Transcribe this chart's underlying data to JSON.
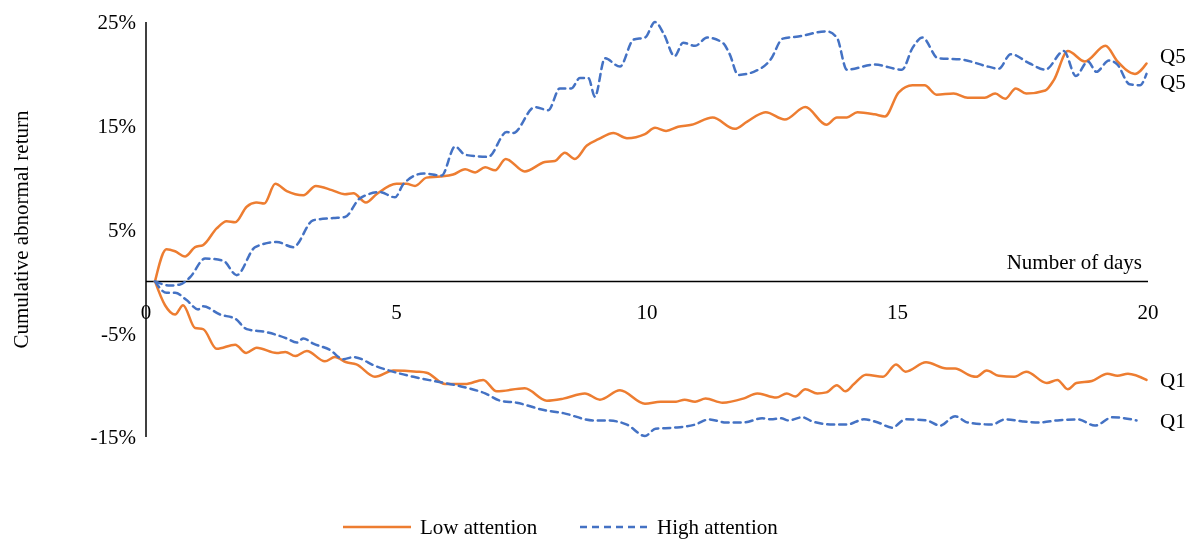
{
  "chart_data": {
    "type": "line",
    "xlabel": "Number of days",
    "ylabel": "Cumulative abnormal return",
    "xlim": [
      0,
      20
    ],
    "xticks": [
      0,
      5,
      10,
      15,
      20
    ],
    "ylim": [
      -15,
      25
    ],
    "yticks": [
      {
        "value": 25,
        "label": "25%"
      },
      {
        "value": 15,
        "label": "15%"
      },
      {
        "value": 5,
        "label": "5%"
      },
      {
        "value": -5,
        "label": "-5%"
      },
      {
        "value": -15,
        "label": "-15%"
      }
    ],
    "grid": false,
    "legend": "bottom",
    "marker": "none",
    "series": [
      {
        "name": "Low attention",
        "color": "#ed7d31",
        "line_style": "solid",
        "x": [
          0.18,
          0.41,
          0.58,
          0.78,
          0.98,
          1.14,
          1.41,
          1.61,
          1.78,
          2.01,
          2.21,
          2.36,
          2.58,
          2.81,
          3.14,
          3.39,
          3.71,
          3.97,
          4.14,
          4.39,
          4.6,
          5.0,
          5.2,
          5.37,
          5.6,
          5.87,
          6.13,
          6.37,
          6.57,
          6.77,
          6.97,
          7.18,
          7.56,
          7.96,
          8.16,
          8.36,
          8.56,
          8.8,
          9.03,
          9.33,
          9.6,
          9.96,
          10.16,
          10.38,
          10.62,
          10.89,
          11.31,
          11.75,
          12.0,
          12.37,
          12.75,
          13.16,
          13.58,
          13.79,
          13.99,
          14.2,
          14.54,
          14.75,
          15.02,
          15.3,
          15.54,
          15.78,
          16.12,
          16.4,
          16.74,
          16.95,
          17.15,
          17.36,
          17.57,
          17.95,
          18.12,
          18.4,
          18.74,
          19.15,
          19.39,
          19.74,
          19.97
        ],
        "values": [
          0,
          3.1,
          2.9,
          2.4,
          3.3,
          3.5,
          5.1,
          5.8,
          5.7,
          7.2,
          7.6,
          7.5,
          9.4,
          8.7,
          8.3,
          9.2,
          8.8,
          8.4,
          8.5,
          7.6,
          8.4,
          9.4,
          9.4,
          9.2,
          10.0,
          10.1,
          10.3,
          10.8,
          10.5,
          11.0,
          10.7,
          11.8,
          10.6,
          11.5,
          11.6,
          12.4,
          11.8,
          13.1,
          13.7,
          14.3,
          13.8,
          14.2,
          14.8,
          14.5,
          14.9,
          15.1,
          15.8,
          14.7,
          15.4,
          16.3,
          15.6,
          16.8,
          15.1,
          15.8,
          15.8,
          16.3,
          16.1,
          15.9,
          18.2,
          18.9,
          18.9,
          18.0,
          18.1,
          17.7,
          17.7,
          18.1,
          17.6,
          18.6,
          18.1,
          18.4,
          19.4,
          22.2,
          21.2,
          22.7,
          21.2,
          20.0,
          21.0
        ]
      },
      {
        "name": "High attention",
        "color": "#4472c4",
        "line_style": "dashed",
        "x": [
          0.18,
          0.48,
          0.68,
          0.88,
          1.18,
          1.54,
          1.81,
          2.18,
          2.61,
          2.94,
          3.34,
          3.74,
          3.97,
          4.27,
          4.67,
          4.97,
          5.14,
          5.54,
          5.9,
          6.17,
          6.37,
          6.83,
          7.2,
          7.33,
          7.76,
          8.03,
          8.26,
          8.49,
          8.66,
          8.83,
          8.96,
          9.16,
          9.46,
          9.73,
          9.96,
          10.16,
          10.34,
          10.55,
          10.72,
          10.96,
          11.2,
          11.51,
          11.65,
          11.82,
          12.13,
          12.47,
          12.71,
          13.02,
          13.58,
          13.79,
          13.99,
          14.54,
          15.09,
          15.3,
          15.5,
          15.81,
          16.26,
          16.81,
          17.02,
          17.26,
          17.64,
          17.95,
          18.32,
          18.56,
          18.8,
          18.97,
          19.22,
          19.39,
          19.63,
          19.84,
          19.97
        ],
        "values": [
          0,
          -0.4,
          -0.3,
          0.4,
          2.2,
          2.0,
          0.6,
          3.3,
          3.8,
          3.3,
          5.9,
          6.1,
          6.2,
          8.0,
          8.6,
          8.1,
          9.4,
          10.4,
          10.2,
          13.0,
          12.2,
          12.0,
          14.4,
          14.3,
          16.8,
          16.5,
          18.6,
          18.6,
          19.6,
          19.6,
          17.8,
          21.5,
          20.7,
          23.3,
          23.5,
          25.0,
          23.8,
          21.7,
          23.0,
          22.7,
          23.5,
          23.0,
          21.9,
          19.9,
          20.2,
          21.4,
          23.4,
          23.6,
          24.1,
          23.5,
          20.4,
          20.9,
          20.4,
          22.5,
          23.5,
          21.5,
          21.4,
          20.7,
          20.5,
          21.9,
          21.0,
          20.4,
          22.2,
          19.8,
          21.2,
          20.2,
          21.3,
          20.9,
          19.0,
          18.9,
          20.0
        ]
      },
      {
        "color": "#ed7d31",
        "line_style": "solid",
        "x": [
          0.18,
          0.38,
          0.58,
          0.74,
          0.98,
          1.14,
          1.41,
          1.78,
          2.0,
          2.21,
          2.61,
          2.78,
          2.98,
          3.21,
          3.57,
          3.77,
          4.0,
          4.2,
          4.57,
          4.94,
          5.4,
          5.6,
          5.97,
          6.37,
          6.73,
          7.0,
          7.56,
          8.0,
          8.33,
          8.76,
          9.06,
          9.46,
          9.96,
          10.27,
          10.58,
          10.75,
          10.96,
          11.17,
          11.51,
          11.92,
          12.2,
          12.58,
          12.79,
          12.96,
          13.16,
          13.4,
          13.58,
          13.79,
          13.96,
          14.13,
          14.37,
          14.71,
          14.97,
          15.16,
          15.57,
          15.98,
          16.15,
          16.46,
          16.57,
          16.78,
          17.02,
          17.33,
          17.57,
          17.98,
          18.19,
          18.4,
          18.57,
          18.88,
          19.19,
          19.39,
          19.6,
          19.97
        ],
        "values": [
          0,
          -2.3,
          -3.2,
          -2.3,
          -4.5,
          -4.6,
          -6.5,
          -6.1,
          -6.9,
          -6.4,
          -6.9,
          -6.8,
          -7.2,
          -6.7,
          -7.7,
          -7.3,
          -7.8,
          -8.0,
          -9.2,
          -8.6,
          -8.7,
          -8.8,
          -9.9,
          -9.9,
          -9.5,
          -10.6,
          -10.3,
          -11.5,
          -11.3,
          -10.8,
          -11.4,
          -10.5,
          -11.8,
          -11.6,
          -11.6,
          -11.4,
          -11.6,
          -11.3,
          -11.7,
          -11.3,
          -10.8,
          -11.2,
          -10.8,
          -11.1,
          -10.4,
          -10.8,
          -10.7,
          -10.0,
          -10.6,
          -9.9,
          -9.0,
          -9.2,
          -8.0,
          -8.7,
          -7.8,
          -8.4,
          -8.4,
          -9.1,
          -9.2,
          -8.6,
          -9.1,
          -9.2,
          -8.7,
          -9.8,
          -9.5,
          -10.4,
          -9.8,
          -9.6,
          -8.9,
          -9.1,
          -8.9,
          -9.5
        ]
      },
      {
        "color": "#4472c4",
        "line_style": "dashed",
        "x": [
          0.18,
          0.41,
          0.58,
          0.81,
          1.04,
          1.14,
          1.48,
          1.78,
          2.01,
          2.41,
          2.81,
          3.01,
          3.14,
          3.34,
          3.67,
          3.94,
          4.14,
          4.6,
          5.0,
          5.34,
          5.74,
          6.27,
          6.77,
          7.07,
          7.4,
          7.94,
          8.33,
          8.93,
          9.2,
          9.6,
          9.96,
          10.17,
          10.55,
          10.96,
          11.24,
          11.58,
          11.92,
          12.3,
          12.47,
          12.68,
          12.82,
          13.1,
          13.3,
          13.71,
          13.99,
          14.33,
          14.61,
          14.89,
          15.16,
          15.57,
          15.85,
          16.15,
          16.4,
          16.88,
          17.15,
          17.5,
          17.84,
          18.19,
          18.6,
          18.94,
          19.29,
          19.77
        ],
        "values": [
          0,
          -1.1,
          -1.1,
          -1.8,
          -2.7,
          -2.4,
          -3.2,
          -3.6,
          -4.6,
          -4.9,
          -5.5,
          -5.9,
          -5.5,
          -6.0,
          -6.6,
          -7.5,
          -7.3,
          -8.2,
          -8.8,
          -9.2,
          -9.6,
          -10.1,
          -10.8,
          -11.5,
          -11.7,
          -12.4,
          -12.7,
          -13.4,
          -13.4,
          -13.8,
          -14.9,
          -14.2,
          -14.1,
          -13.8,
          -13.3,
          -13.6,
          -13.6,
          -13.2,
          -13.3,
          -13.2,
          -13.4,
          -13.1,
          -13.5,
          -13.8,
          -13.8,
          -13.3,
          -13.6,
          -14.1,
          -13.3,
          -13.4,
          -13.9,
          -13.0,
          -13.6,
          -13.8,
          -13.3,
          -13.5,
          -13.6,
          -13.4,
          -13.3,
          -13.9,
          -13.1,
          -13.4
        ]
      }
    ],
    "annotations": [
      "Q5",
      "Q5",
      "Q1",
      "Q1"
    ]
  }
}
